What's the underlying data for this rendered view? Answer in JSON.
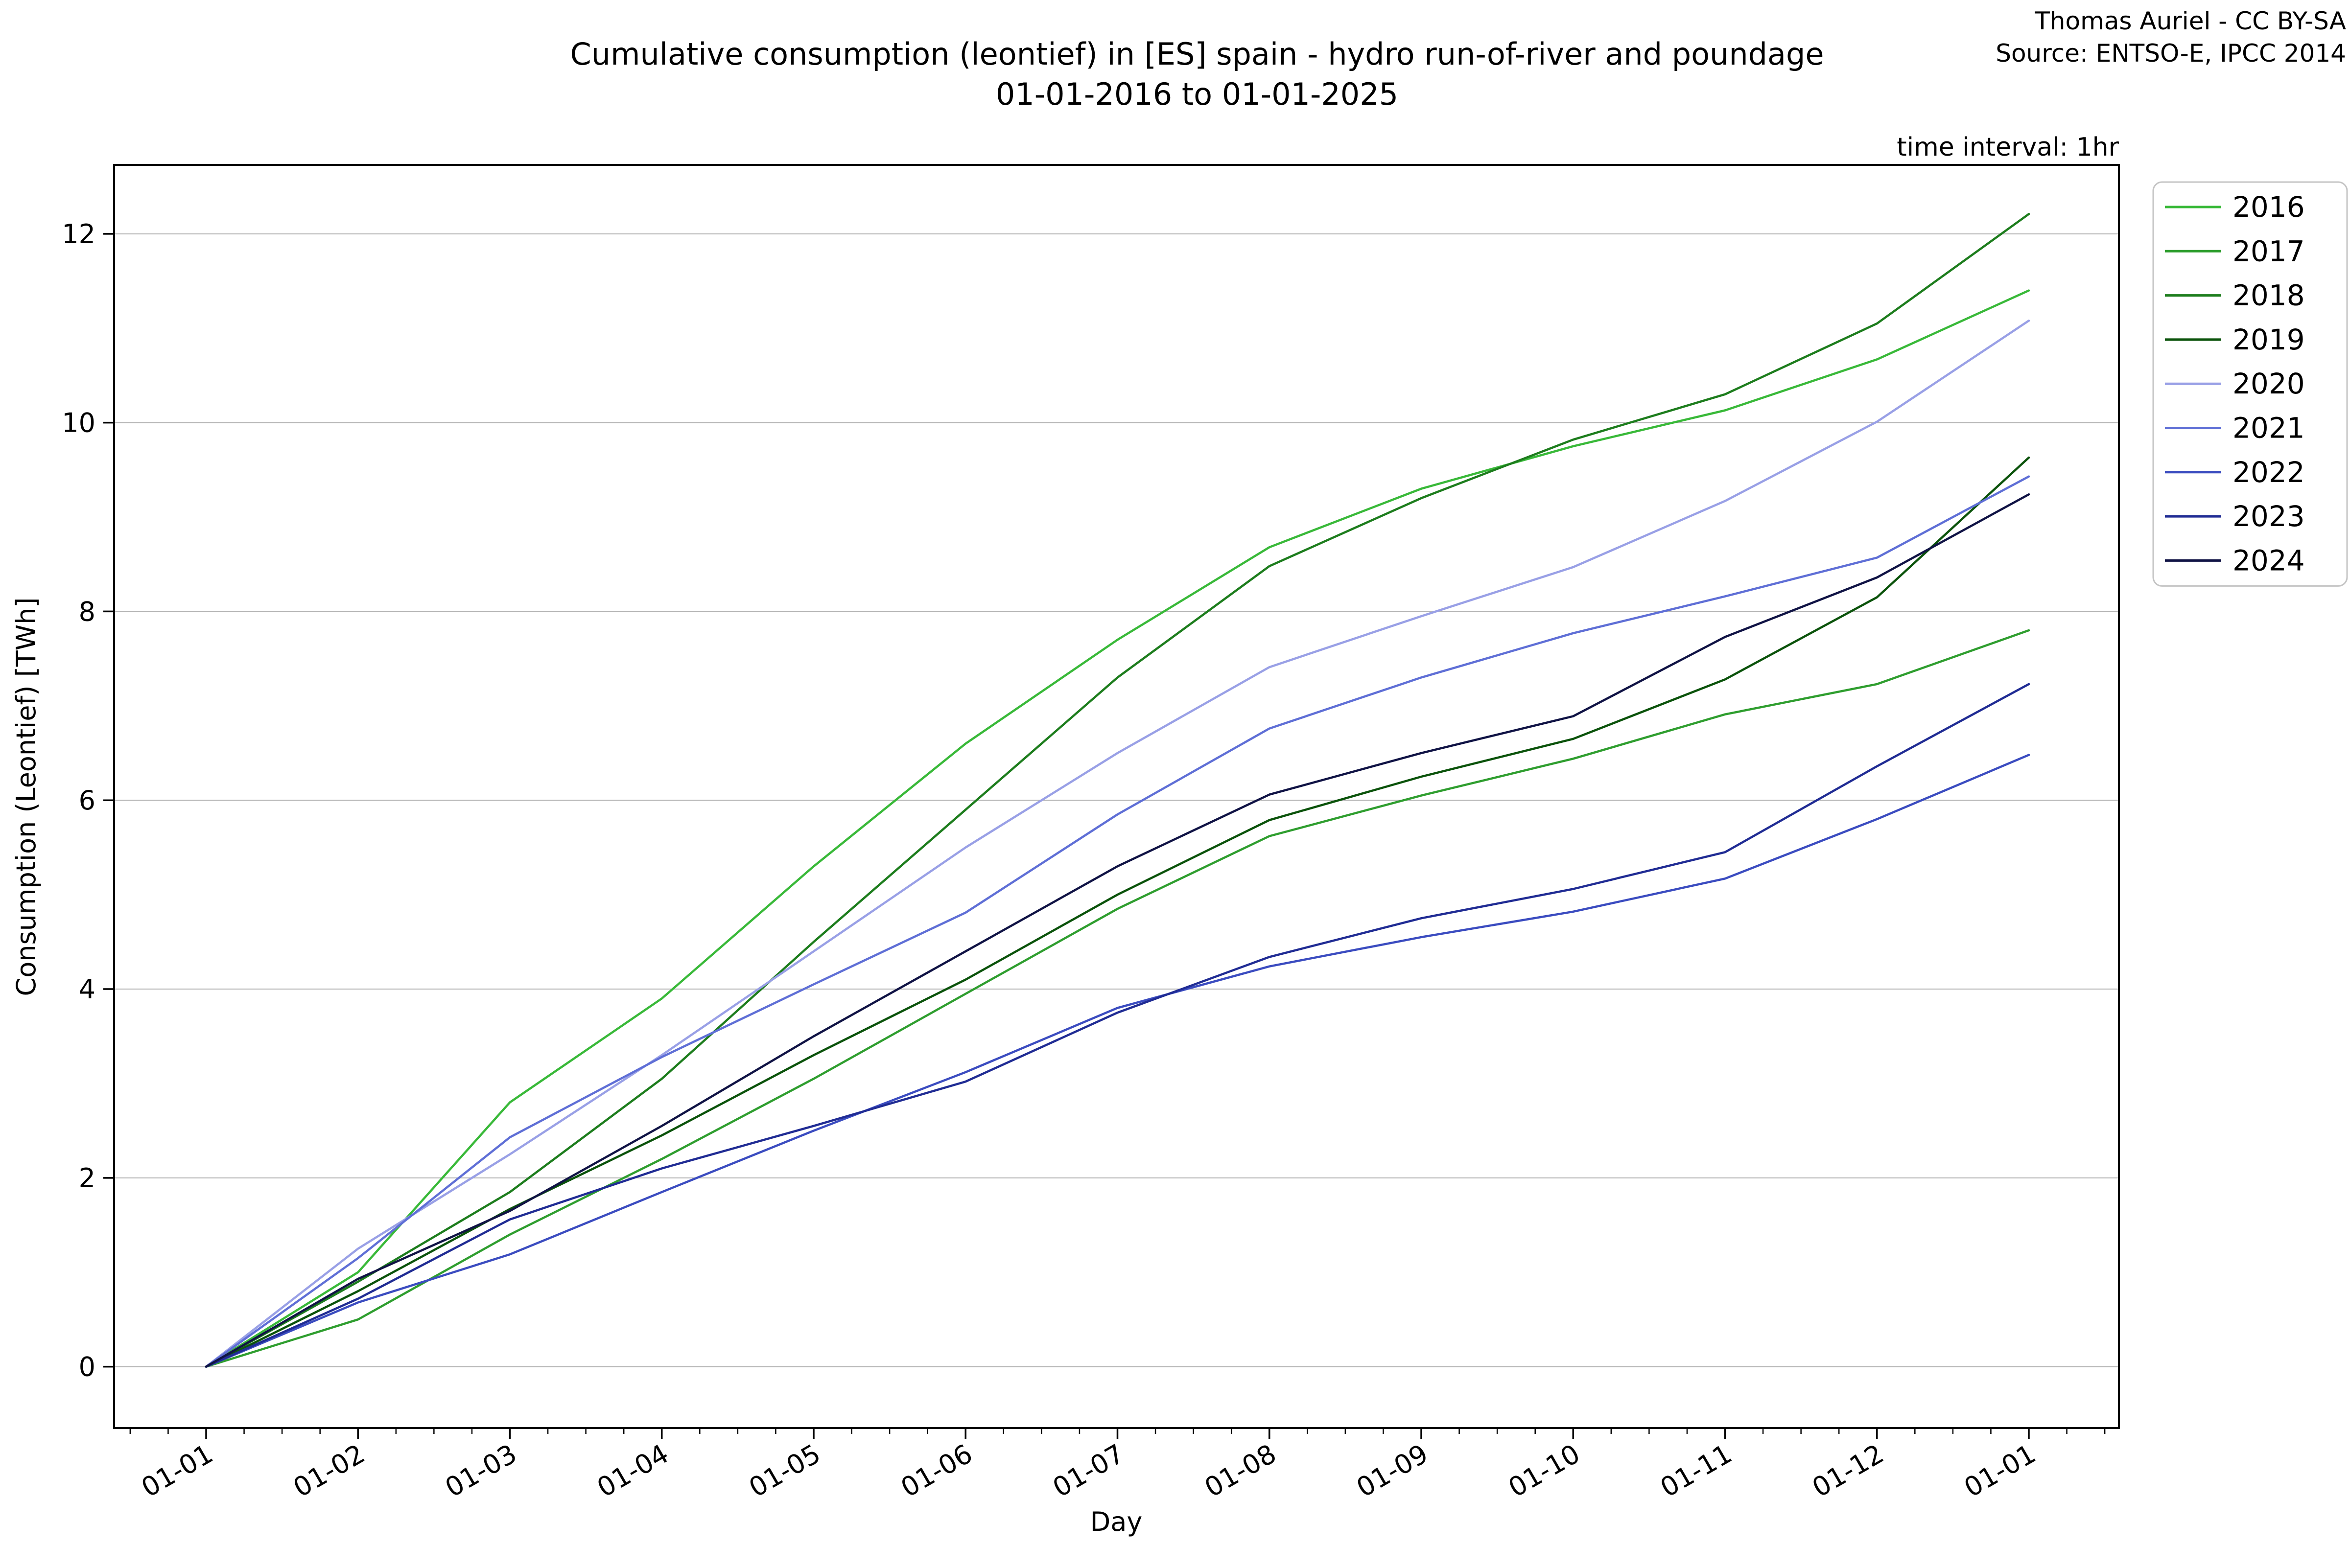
{
  "header": {
    "credit": "Thomas Auriel - CC BY-SA",
    "source": "Source: ENTSO-E, IPCC 2014",
    "time_interval": "time interval: 1hr"
  },
  "chart_data": {
    "type": "line",
    "title": "Cumulative consumption (leontief) in [ES] spain - hydro run-of-river and poundage",
    "subtitle": "01-01-2016 to 01-01-2025",
    "xlabel": "Day",
    "ylabel": "Consumption (Leontief) [TWh]",
    "categories": [
      "01-01",
      "01-02",
      "01-03",
      "01-04",
      "01-05",
      "01-06",
      "01-07",
      "01-08",
      "01-09",
      "01-10",
      "01-11",
      "01-12",
      "01-01"
    ],
    "yticks": [
      0,
      2,
      4,
      6,
      8,
      10,
      12
    ],
    "ylim": [
      -0.65,
      12.73
    ],
    "grid": "horizontal",
    "legend_position": "upper-right-outside",
    "axis_colors": {
      "spine": "#000000",
      "gridline": "#b3b3b3",
      "legend_border": "#c4c4c4"
    },
    "series": [
      {
        "name": "2016",
        "color": "#39b939",
        "values": [
          0,
          1.0,
          2.8,
          3.9,
          5.3,
          6.6,
          7.7,
          8.68,
          9.3,
          9.75,
          10.13,
          10.67,
          11.4
        ]
      },
      {
        "name": "2017",
        "color": "#2f9e2f",
        "values": [
          0,
          0.5,
          1.4,
          2.2,
          3.05,
          3.95,
          4.85,
          5.62,
          6.05,
          6.44,
          6.91,
          7.23,
          7.8
        ]
      },
      {
        "name": "2018",
        "color": "#1d7d1d",
        "values": [
          0,
          0.9,
          1.85,
          3.05,
          4.5,
          5.9,
          7.3,
          8.48,
          9.2,
          9.82,
          10.3,
          11.05,
          12.21
        ]
      },
      {
        "name": "2019",
        "color": "#0b530b",
        "values": [
          0,
          0.8,
          1.67,
          2.45,
          3.3,
          4.1,
          5.0,
          5.79,
          6.25,
          6.65,
          7.28,
          8.15,
          9.63
        ]
      },
      {
        "name": "2020",
        "color": "#99a0e6",
        "values": [
          0,
          1.25,
          2.25,
          3.3,
          4.4,
          5.5,
          6.5,
          7.41,
          7.95,
          8.47,
          9.17,
          10.01,
          11.08
        ]
      },
      {
        "name": "2021",
        "color": "#5f6fd6",
        "values": [
          0,
          1.15,
          2.43,
          3.28,
          4.05,
          4.81,
          5.85,
          6.76,
          7.3,
          7.77,
          8.16,
          8.57,
          9.43
        ]
      },
      {
        "name": "2022",
        "color": "#3b4cc0",
        "values": [
          0,
          0.68,
          1.19,
          1.85,
          2.5,
          3.12,
          3.8,
          4.24,
          4.55,
          4.82,
          5.17,
          5.8,
          6.48
        ]
      },
      {
        "name": "2023",
        "color": "#202c94",
        "values": [
          0,
          0.72,
          1.56,
          2.1,
          2.55,
          3.02,
          3.75,
          4.34,
          4.75,
          5.06,
          5.45,
          6.36,
          7.23
        ]
      },
      {
        "name": "2024",
        "color": "#101345",
        "values": [
          0,
          0.93,
          1.65,
          2.55,
          3.5,
          4.4,
          5.3,
          6.06,
          6.5,
          6.89,
          7.73,
          8.36,
          9.24
        ]
      }
    ]
  }
}
